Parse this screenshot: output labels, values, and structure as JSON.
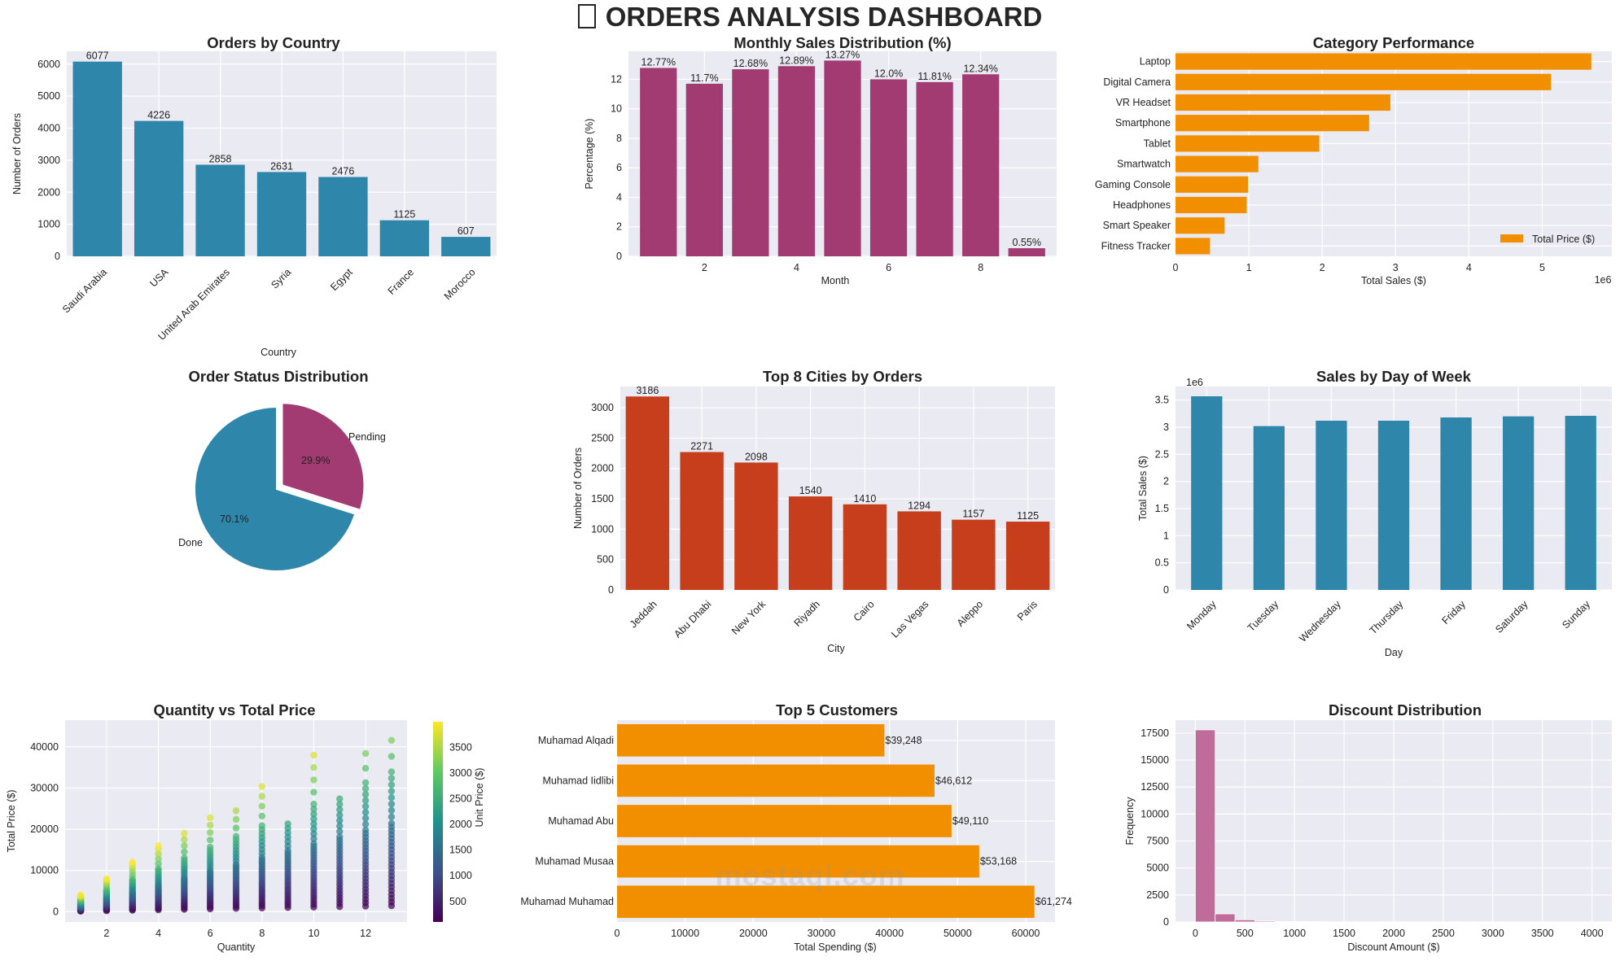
{
  "dashboard": {
    "title": "ORDERS ANALYSIS DASHBOARD"
  },
  "watermark": "mostaql.com",
  "colors": {
    "teal": "#2e86ab",
    "magenta": "#a23b72",
    "orange": "#f18f01",
    "red": "#c73e1d",
    "pink": "#c06c9a",
    "grid": "#ffffff",
    "bg": "#eaeaf2"
  },
  "chart_data": [
    {
      "id": "country",
      "type": "bar",
      "title": "Orders by Country",
      "categories": [
        "Saudi Arabia",
        "USA",
        "United Arab Emirates",
        "Syria",
        "Egypt",
        "France",
        "Morocco"
      ],
      "values": [
        6077,
        4226,
        2858,
        2631,
        2476,
        1125,
        607
      ],
      "xlabel": "Country",
      "ylabel": "Number of Orders",
      "ylim": [
        0,
        6400
      ],
      "yticks": [
        0,
        1000,
        2000,
        3000,
        4000,
        5000,
        6000
      ]
    },
    {
      "id": "monthly",
      "type": "bar",
      "title": "Monthly Sales Distribution (%)",
      "x": [
        1,
        2,
        3,
        4,
        5,
        6,
        7,
        8,
        9
      ],
      "values": [
        12.77,
        11.7,
        12.68,
        12.89,
        13.27,
        12.0,
        11.81,
        12.34,
        0.55
      ],
      "labels": [
        "12.77%",
        "11.7%",
        "12.68%",
        "12.89%",
        "13.27%",
        "12.0%",
        "11.81%",
        "12.34%",
        "0.55%"
      ],
      "xlabel": "Month",
      "ylabel": "Percentage (%)",
      "ylim": [
        0,
        13.9
      ],
      "yticks": [
        0,
        2,
        4,
        6,
        8,
        10,
        12
      ],
      "xticks": [
        2,
        4,
        6,
        8
      ]
    },
    {
      "id": "category",
      "type": "barh",
      "title": "Category Performance",
      "categories": [
        "Laptop",
        "Digital Camera",
        "VR Headset",
        "Smartphone",
        "Tablet",
        "Smartwatch",
        "Gaming Console",
        "Headphones",
        "Smart Speaker",
        "Fitness Tracker"
      ],
      "values": [
        5.67,
        5.12,
        2.93,
        2.64,
        1.96,
        1.13,
        0.99,
        0.97,
        0.67,
        0.47
      ],
      "xlabel": "Total Sales ($)",
      "xlim": [
        0,
        5.95
      ],
      "xticks": [
        0,
        1,
        2,
        3,
        4,
        5
      ],
      "multiplier": "1e6",
      "legend": "Total Price ($)",
      "legend_position": "lower-right"
    },
    {
      "id": "status",
      "type": "pie",
      "title": "Order Status Distribution",
      "labels": [
        "Done",
        "Pending"
      ],
      "values": [
        70.1,
        29.9
      ],
      "pct_labels": [
        "70.1%",
        "29.9%"
      ]
    },
    {
      "id": "cities",
      "type": "bar",
      "title": "Top 8 Cities by Orders",
      "categories": [
        "Jeddah",
        "Abu Dhabi",
        "New York",
        "Riyadh",
        "Cairo",
        "Las Vegas",
        "Aleppo",
        "Paris"
      ],
      "values": [
        3186,
        2271,
        2098,
        1540,
        1410,
        1294,
        1157,
        1125
      ],
      "xlabel": "City",
      "ylabel": "Number of Orders",
      "ylim": [
        0,
        3350
      ],
      "yticks": [
        0,
        500,
        1000,
        1500,
        2000,
        2500,
        3000
      ]
    },
    {
      "id": "weekday",
      "type": "bar",
      "title": "Sales by Day of Week",
      "categories": [
        "Monday",
        "Tuesday",
        "Wednesday",
        "Thursday",
        "Friday",
        "Saturday",
        "Sunday"
      ],
      "values": [
        3.57,
        3.02,
        3.12,
        3.12,
        3.18,
        3.2,
        3.21
      ],
      "xlabel": "Day",
      "ylabel": "Total Sales ($)",
      "ylim": [
        0,
        3.75
      ],
      "yticks": [
        0,
        0.5,
        1.0,
        1.5,
        2.0,
        2.5,
        3.0,
        3.5
      ],
      "multiplier": "1e6"
    },
    {
      "id": "scatter",
      "type": "scatter",
      "title": "Quantity vs Total Price",
      "xlabel": "Quantity",
      "ylabel": "Total Price ($)",
      "xlim": [
        0.4,
        13.6
      ],
      "ylim": [
        -2500,
        46500
      ],
      "xticks": [
        2,
        4,
        6,
        8,
        10,
        12
      ],
      "yticks": [
        0,
        10000,
        20000,
        30000,
        40000
      ],
      "colorbar": {
        "label": "Unit Price ($)",
        "range": [
          100,
          4000
        ],
        "ticks": [
          500,
          1000,
          1500,
          2000,
          2500,
          3000,
          3500
        ]
      },
      "max_unit_price": {
        "1": 4000,
        "2": 4000,
        "3": 4000,
        "4": 4000,
        "5": 3900,
        "6": 3800,
        "7": 3700,
        "8": 3950,
        "9": 2400,
        "10": 3950,
        "11": 2500,
        "12": 3300,
        "13": 3350
      }
    },
    {
      "id": "customers",
      "type": "barh",
      "title": "Top 5 Customers",
      "categories": [
        "Muhamad Alqadi",
        "Muhamad Iidlibi",
        "Muhamad Abu",
        "Muhamad Musaa",
        "Muhamad Muhamad"
      ],
      "values": [
        39248,
        46612,
        49110,
        53168,
        61274
      ],
      "labels": [
        "$39,248",
        "$46,612",
        "$49,110",
        "$53,168",
        "$61,274"
      ],
      "xlabel": "Total Spending ($)",
      "xlim": [
        0,
        64300
      ],
      "xticks": [
        0,
        10000,
        20000,
        30000,
        40000,
        50000,
        60000
      ]
    },
    {
      "id": "discount",
      "type": "histogram",
      "title": "Discount Distribution",
      "bin_edges": [
        0,
        200,
        400,
        600,
        800,
        1000,
        1200,
        1400,
        1600,
        1800,
        2000,
        2200,
        2400,
        2600,
        2800,
        3000,
        3200,
        3400,
        3600,
        3800,
        4000
      ],
      "counts": [
        17800,
        750,
        200,
        90,
        40,
        20,
        10,
        8,
        5,
        4,
        3,
        2,
        2,
        1,
        1,
        1,
        1,
        0,
        0,
        1
      ],
      "xlabel": "Discount Amount ($)",
      "ylabel": "Frequency",
      "xlim": [
        -200,
        4200
      ],
      "ylim": [
        0,
        18700
      ],
      "xticks": [
        0,
        500,
        1000,
        1500,
        2000,
        2500,
        3000,
        3500,
        4000
      ],
      "yticks": [
        0,
        2500,
        5000,
        7500,
        10000,
        12500,
        15000,
        17500
      ]
    }
  ]
}
